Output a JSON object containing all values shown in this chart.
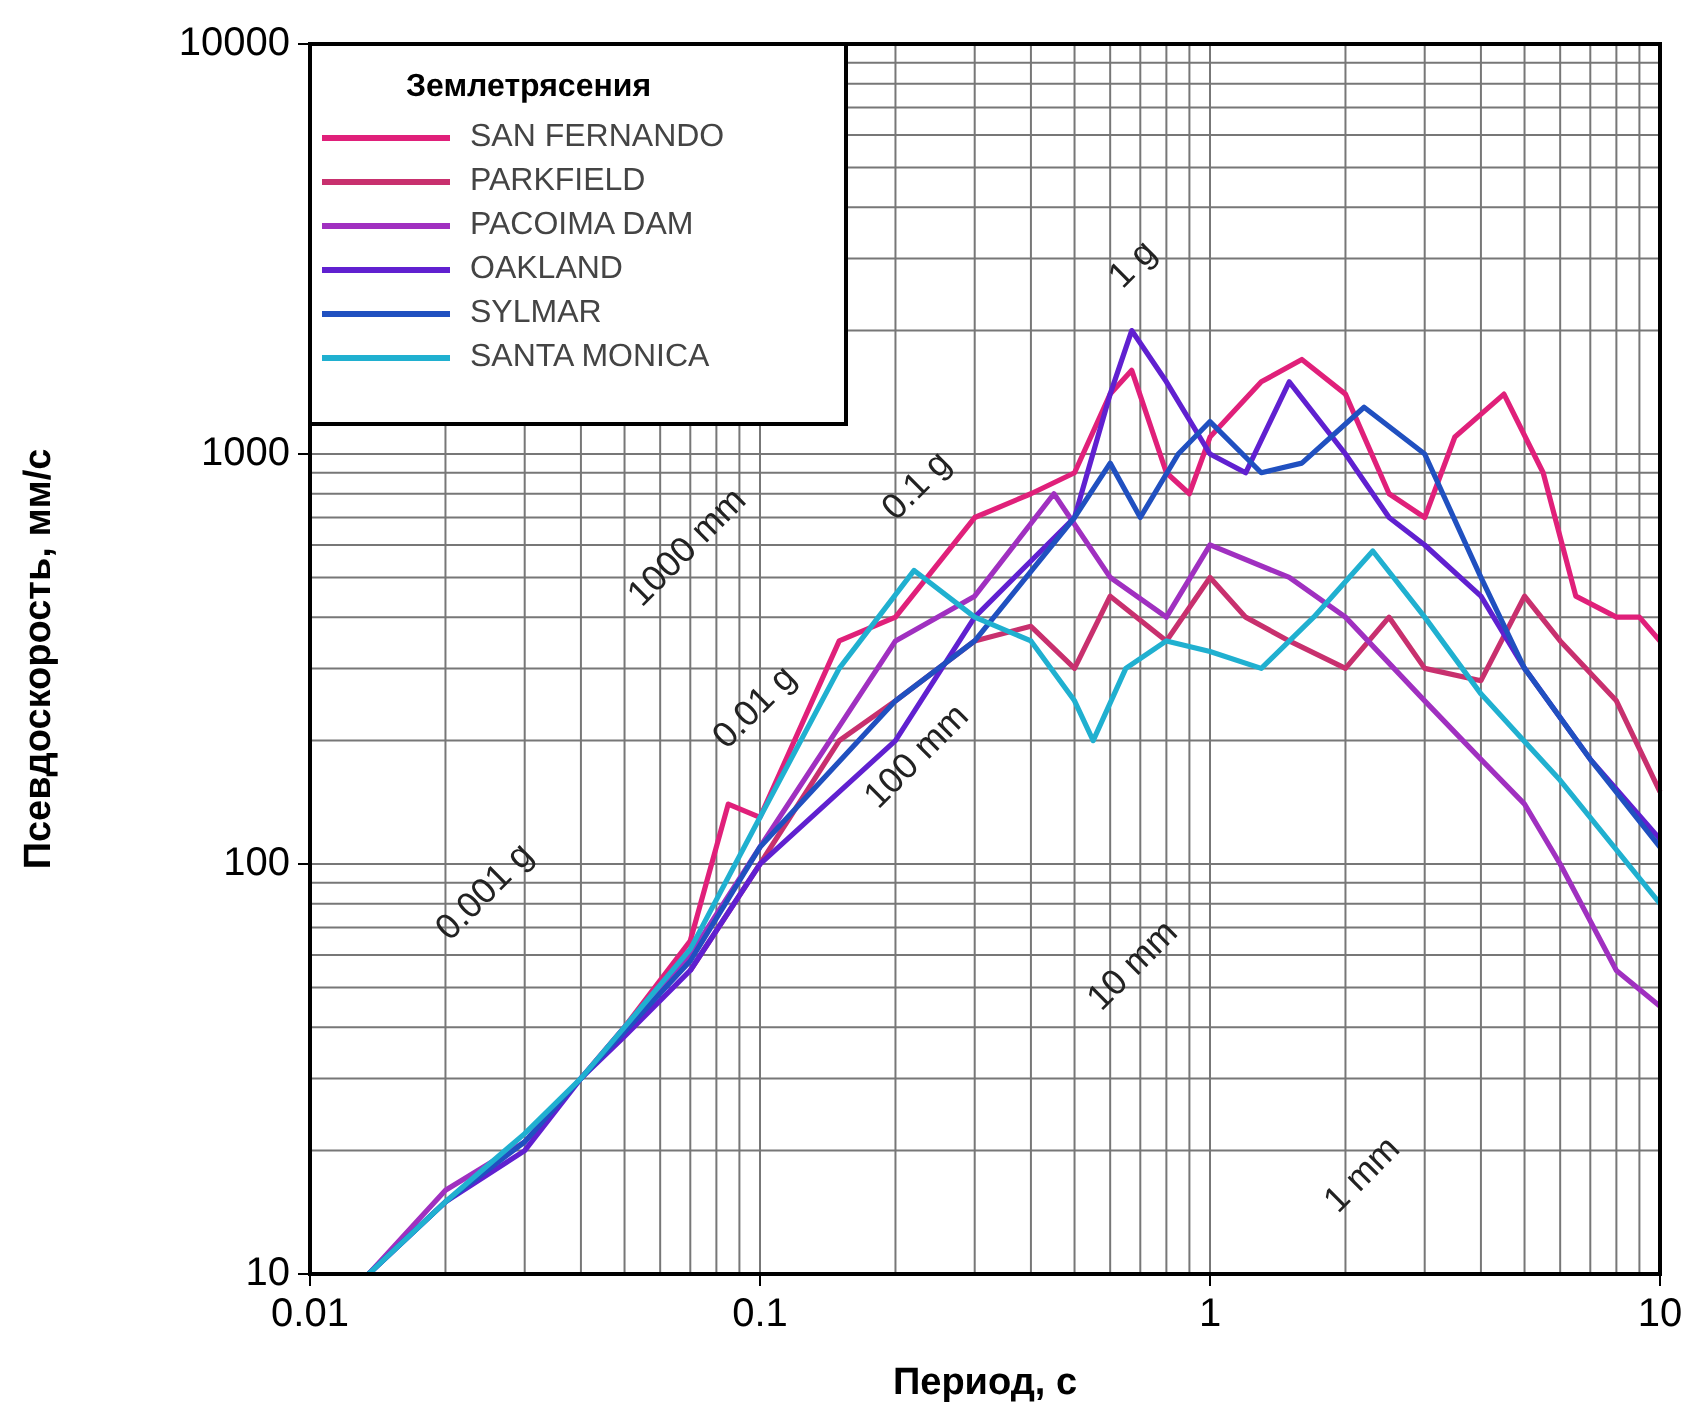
{
  "chart_data": {
    "type": "line",
    "xlabel": "Период, с",
    "ylabel": "Псевдоскорость, мм/с",
    "legend_title": "Землетрясения",
    "legend": "top left",
    "log": "xy",
    "grid": true,
    "line_style": "solid",
    "xlim": [
      0.01,
      10
    ],
    "xticks": [
      0.01,
      0.1,
      1,
      10
    ],
    "ylim": [
      10,
      10000
    ],
    "yticks": [
      10,
      100,
      1000,
      10000
    ],
    "annotations": [
      "1 g",
      "0.1 g",
      "1000 mm",
      "0.01 g",
      "100 mm",
      "0.001 g",
      "10 mm",
      "1 mm"
    ],
    "series": [
      {
        "name": "SAN FERNANDO",
        "color": "#e0207a",
        "x": [
          0.04,
          0.05,
          0.07,
          0.085,
          0.1,
          0.15,
          0.2,
          0.3,
          0.4,
          0.5,
          0.6,
          0.67,
          0.8,
          0.9,
          1.0,
          1.3,
          1.6,
          2,
          2.5,
          3,
          3.5,
          4.5,
          5.5,
          6.5,
          8,
          9,
          10
        ],
        "values": [
          30,
          40,
          65,
          140,
          130,
          350,
          400,
          700,
          800,
          900,
          1400,
          1600,
          900,
          800,
          1100,
          1500,
          1700,
          1400,
          800,
          700,
          1100,
          1400,
          900,
          450,
          400,
          400,
          350
        ]
      },
      {
        "name": "PARKFIELD",
        "color": "#c8306e",
        "x": [
          0.07,
          0.1,
          0.15,
          0.2,
          0.3,
          0.4,
          0.5,
          0.6,
          0.8,
          1,
          1.2,
          1.5,
          2,
          2.5,
          3,
          4,
          5,
          6,
          8,
          10
        ],
        "values": [
          55,
          100,
          200,
          250,
          350,
          380,
          300,
          450,
          350,
          500,
          400,
          350,
          300,
          400,
          300,
          280,
          450,
          350,
          250,
          150
        ]
      },
      {
        "name": "PACOIMA DAM",
        "color": "#a030c0",
        "x": [
          0.0135,
          0.02,
          0.03,
          0.04,
          0.05,
          0.07,
          0.1,
          0.2,
          0.3,
          0.45,
          0.6,
          0.8,
          1,
          1.5,
          2,
          3,
          4,
          5,
          6,
          8,
          10
        ],
        "values": [
          10,
          16,
          21,
          30,
          40,
          60,
          110,
          350,
          450,
          800,
          500,
          400,
          600,
          500,
          400,
          250,
          180,
          140,
          100,
          55,
          45
        ]
      },
      {
        "name": "OAKLAND",
        "color": "#6020d0",
        "x": [
          0.0135,
          0.02,
          0.03,
          0.04,
          0.05,
          0.07,
          0.1,
          0.2,
          0.3,
          0.5,
          0.6,
          0.67,
          0.8,
          1,
          1.2,
          1.5,
          2,
          2.5,
          3,
          4,
          5,
          7,
          10
        ],
        "values": [
          10,
          15,
          20,
          30,
          38,
          55,
          100,
          200,
          400,
          700,
          1400,
          2000,
          1500,
          1000,
          900,
          1500,
          1000,
          700,
          600,
          450,
          300,
          180,
          115
        ]
      },
      {
        "name": "SYLMAR",
        "color": "#2050c0",
        "x": [
          0.0135,
          0.02,
          0.03,
          0.04,
          0.05,
          0.07,
          0.1,
          0.2,
          0.3,
          0.5,
          0.6,
          0.7,
          0.85,
          1,
          1.3,
          1.6,
          2.2,
          3,
          4,
          5,
          7,
          10
        ],
        "values": [
          10,
          15,
          21,
          30,
          39,
          58,
          110,
          250,
          350,
          700,
          950,
          700,
          1000,
          1200,
          900,
          950,
          1300,
          1000,
          500,
          300,
          180,
          110
        ]
      },
      {
        "name": "SANTA MONICA",
        "color": "#20b0d0",
        "x": [
          0.0135,
          0.02,
          0.03,
          0.04,
          0.05,
          0.07,
          0.1,
          0.15,
          0.22,
          0.3,
          0.4,
          0.5,
          0.55,
          0.65,
          0.8,
          1,
          1.3,
          1.7,
          2.3,
          3,
          4,
          6,
          10
        ],
        "values": [
          10,
          15,
          22,
          30,
          40,
          62,
          130,
          300,
          520,
          400,
          350,
          250,
          200,
          300,
          350,
          330,
          300,
          400,
          580,
          400,
          260,
          160,
          80
        ]
      }
    ]
  }
}
